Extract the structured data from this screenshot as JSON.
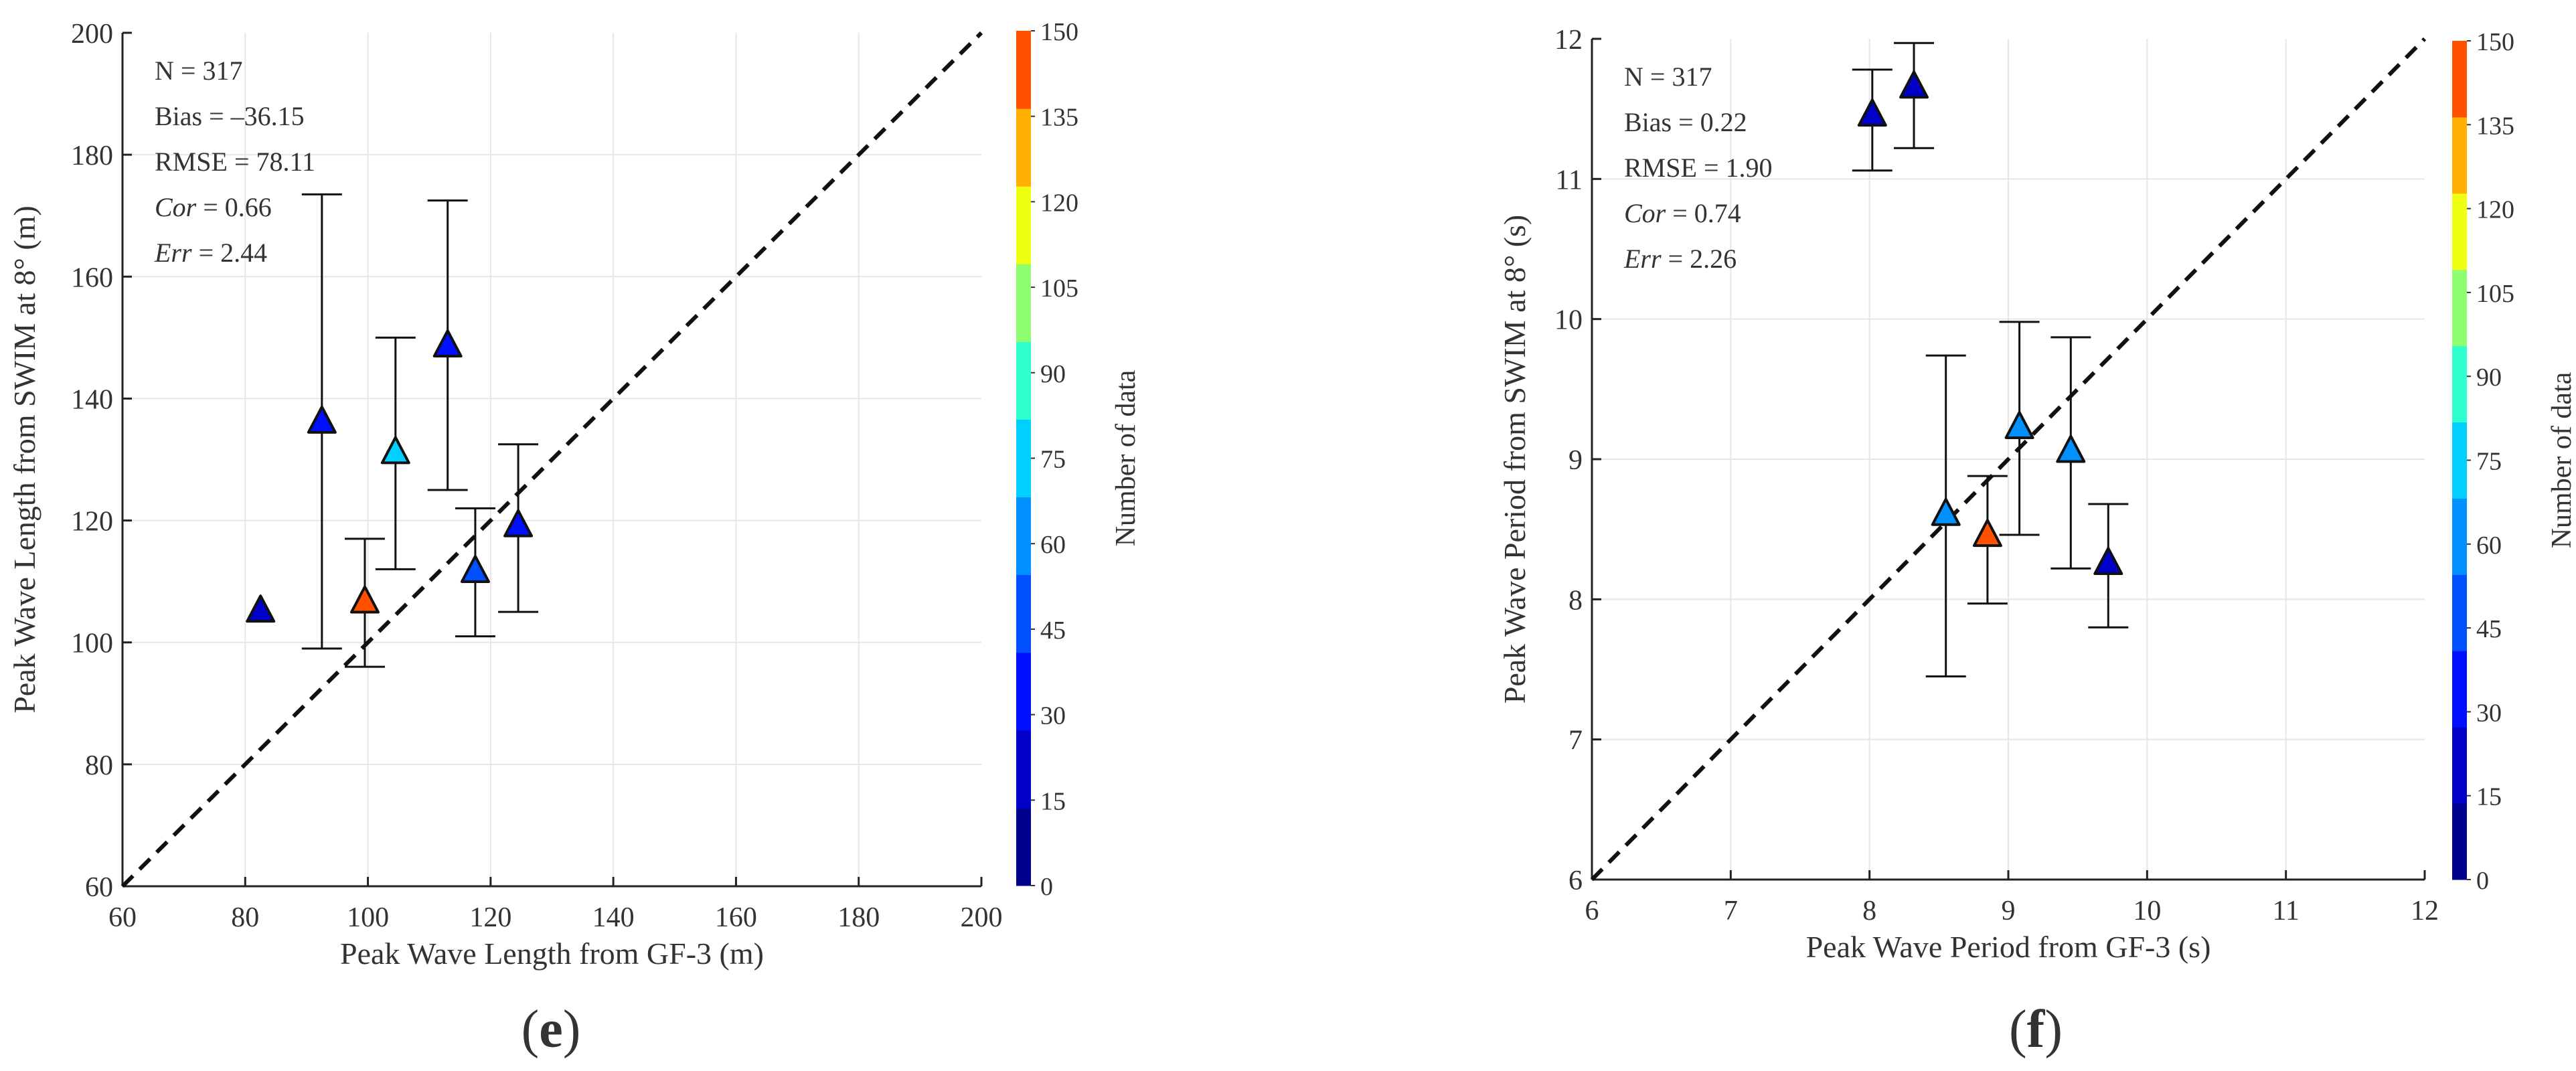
{
  "chart_data": [
    {
      "type": "scatter",
      "panel_label": "e",
      "xlabel": "Peak Wave Length from GF-3 (m)",
      "ylabel": "Peak Wave Length from SWIM at 8° (m)",
      "xlim": [
        60,
        200
      ],
      "ylim": [
        60,
        200
      ],
      "xticks": [
        60,
        80,
        100,
        120,
        140,
        160,
        180,
        200
      ],
      "yticks": [
        60,
        80,
        100,
        120,
        140,
        160,
        180,
        200
      ],
      "grid": true,
      "reference_line": "y = x (dashed)",
      "stats": [
        {
          "label": "N",
          "italic": false,
          "value": "317"
        },
        {
          "label": "Bias",
          "italic": false,
          "value": "–36.15"
        },
        {
          "label": "RMSE",
          "italic": false,
          "value": "78.11"
        },
        {
          "label": "Cor",
          "italic": true,
          "value": "0.66"
        },
        {
          "label": "Err",
          "italic": true,
          "value": "2.44"
        }
      ],
      "points": [
        {
          "x": 82.5,
          "y": 105,
          "err_low": 105,
          "err_high": 105,
          "count": 20
        },
        {
          "x": 92.5,
          "y": 136,
          "err_low": 99,
          "err_high": 173.5,
          "count": 40
        },
        {
          "x": 99.5,
          "y": 106.5,
          "err_low": 96,
          "err_high": 117,
          "count": 140
        },
        {
          "x": 104.5,
          "y": 131,
          "err_low": 112,
          "err_high": 150,
          "count": 80
        },
        {
          "x": 113,
          "y": 148.5,
          "err_low": 125,
          "err_high": 172.5,
          "count": 40
        },
        {
          "x": 117.5,
          "y": 111.5,
          "err_low": 101,
          "err_high": 122,
          "count": 45
        },
        {
          "x": 124.5,
          "y": 119,
          "err_low": 105,
          "err_high": 132.5,
          "count": 40
        }
      ]
    },
    {
      "type": "scatter",
      "panel_label": "f",
      "xlabel": "Peak Wave Period from GF-3 (s)",
      "ylabel": "Peak Wave Period from SWIM at 8° (s)",
      "xlim": [
        6,
        12
      ],
      "ylim": [
        6,
        12
      ],
      "xticks": [
        6,
        7,
        8,
        9,
        10,
        11,
        12
      ],
      "yticks": [
        6,
        7,
        8,
        9,
        10,
        11,
        12
      ],
      "grid": true,
      "reference_line": "y = x (dashed)",
      "stats": [
        {
          "label": "N",
          "italic": false,
          "value": "317"
        },
        {
          "label": "Bias",
          "italic": false,
          "value": "0.22"
        },
        {
          "label": "RMSE",
          "italic": false,
          "value": "1.90"
        },
        {
          "label": "Cor",
          "italic": true,
          "value": "0.74"
        },
        {
          "label": "Err",
          "italic": true,
          "value": "2.26"
        }
      ],
      "points": [
        {
          "x": 8.02,
          "y": 11.45,
          "err_low": 11.06,
          "err_high": 11.78,
          "count": 25
        },
        {
          "x": 8.32,
          "y": 11.65,
          "err_low": 11.22,
          "err_high": 11.97,
          "count": 25
        },
        {
          "x": 8.55,
          "y": 8.6,
          "err_low": 7.45,
          "err_high": 9.74,
          "count": 55
        },
        {
          "x": 8.85,
          "y": 8.45,
          "err_low": 7.97,
          "err_high": 8.88,
          "count": 140
        },
        {
          "x": 9.08,
          "y": 9.22,
          "err_low": 8.46,
          "err_high": 9.98,
          "count": 55
        },
        {
          "x": 9.45,
          "y": 9.05,
          "err_low": 8.22,
          "err_high": 9.87,
          "count": 55
        },
        {
          "x": 9.72,
          "y": 8.25,
          "err_low": 7.8,
          "err_high": 8.68,
          "count": 25
        }
      ]
    }
  ],
  "colorbar": {
    "label": "Number of data",
    "range": [
      0,
      150
    ],
    "ticks": [
      0,
      15,
      30,
      45,
      60,
      75,
      90,
      105,
      120,
      135,
      150
    ],
    "bin_colors": [
      "#00008f",
      "#0000c8",
      "#0010ff",
      "#0050ff",
      "#0090ff",
      "#00d0ff",
      "#30ffcf",
      "#8fff70",
      "#efff10",
      "#ffb000",
      "#ff5000"
    ]
  }
}
